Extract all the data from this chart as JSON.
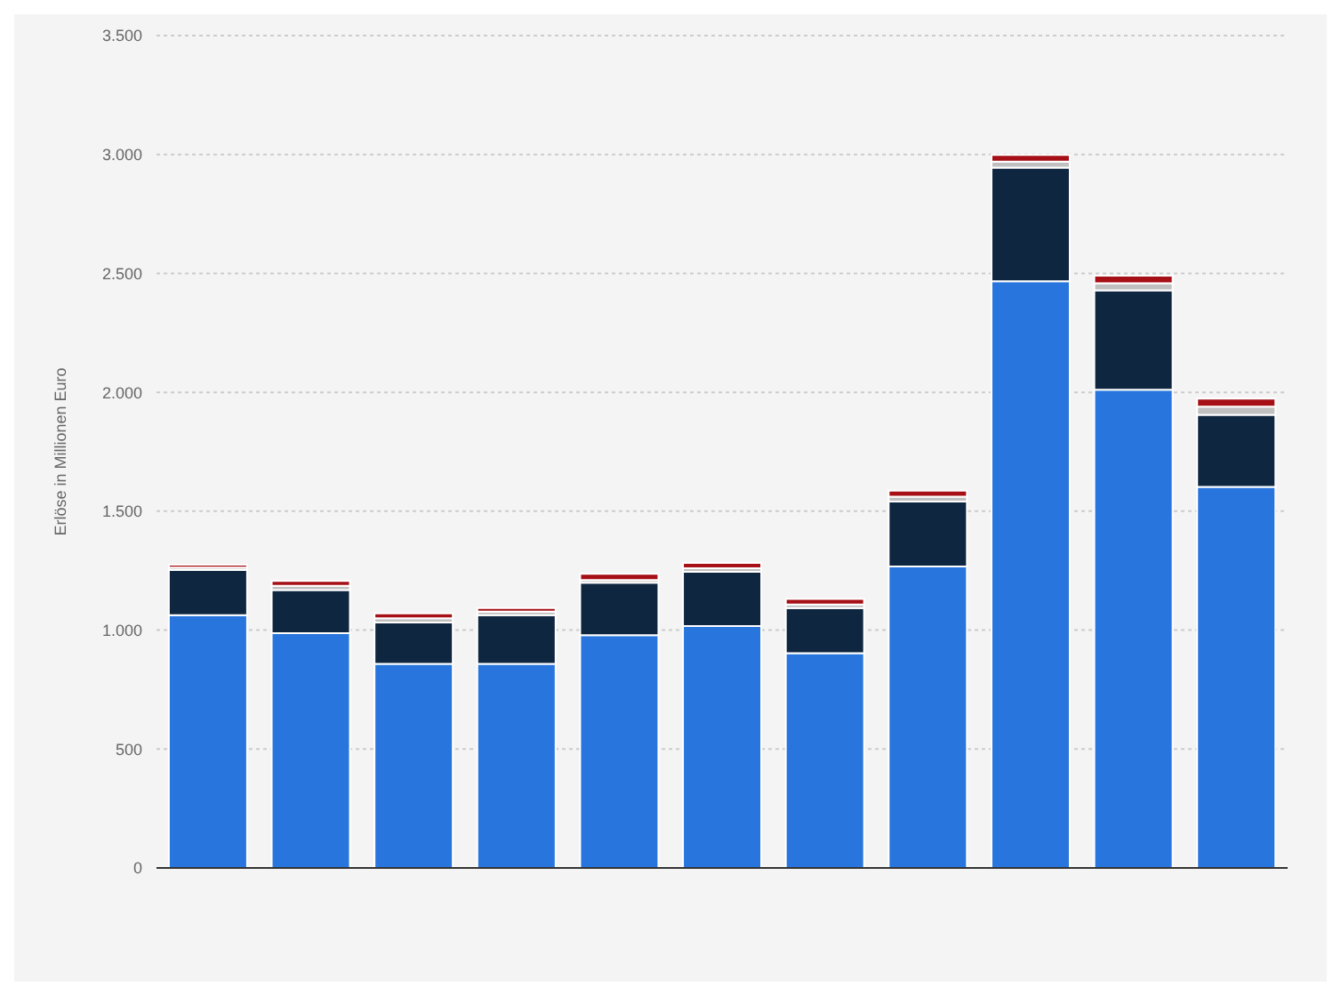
{
  "chart_data": {
    "type": "bar",
    "stacked": true,
    "ylabel": "Erlöse in Millionen Euro",
    "categories": [
      null,
      null,
      null,
      null,
      null,
      null,
      null,
      null,
      null,
      null,
      null
    ],
    "series": [
      {
        "color": "#2876dd",
        "values": [
          1063,
          987,
          858,
          858,
          979,
          1017,
          903,
          1268,
          2467,
          2011,
          1602
        ]
      },
      {
        "color": "#0f2640",
        "values": [
          190,
          182,
          174,
          205,
          220,
          228,
          190,
          273,
          478,
          418,
          303
        ]
      },
      {
        "color": "#c0c0c0",
        "values": [
          10,
          17,
          18,
          15,
          12,
          15,
          15,
          20,
          25,
          30,
          35
        ]
      },
      {
        "color": "#a50f15",
        "values": [
          12,
          21,
          20,
          15,
          26,
          23,
          23,
          25,
          28,
          31,
          33
        ]
      }
    ],
    "ylim": [
      0,
      3500
    ],
    "yticks": [
      0,
      500,
      {
        "value": 1000,
        "label": "1.000"
      },
      {
        "value": 1500,
        "label": "1.500"
      },
      {
        "value": 2000,
        "label": "2.000"
      },
      {
        "value": 2500,
        "label": "2.500"
      },
      {
        "value": 3000,
        "label": "3.000"
      },
      {
        "value": 3500,
        "label": "3.500"
      }
    ],
    "grid": "y",
    "legend": false,
    "tick_labels": "y"
  }
}
